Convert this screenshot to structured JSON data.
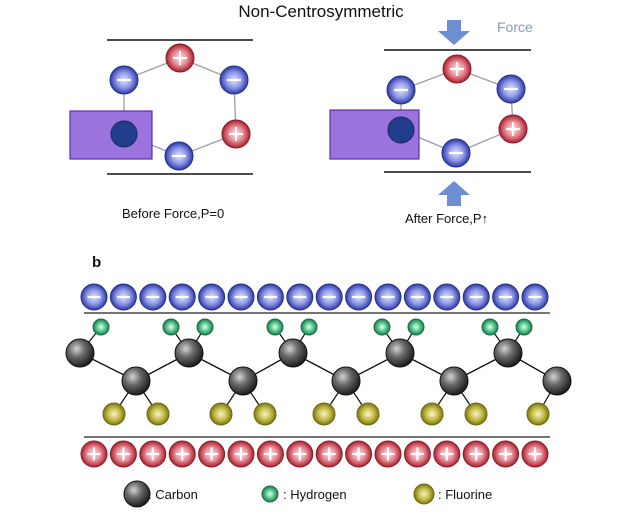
{
  "title": "Non-Centrosymmetric",
  "force_label": "Force",
  "before_caption": "Before Force,P=0",
  "after_caption": "After Force,P↑",
  "panel_label": "b",
  "legend": [
    {
      "symbol": "carbon",
      "label": ": Carbon"
    },
    {
      "symbol": "hydrogen",
      "label": ": Hydrogen"
    },
    {
      "symbol": "fluorine",
      "label": ": Fluorine"
    }
  ],
  "colors": {
    "negative": "#3c46b4",
    "positive": "#c02c3c",
    "carbon": "#3a3a3a",
    "hydrogen": "#2c9a62",
    "fluorine": "#a39a1e",
    "dipole": "#9b72de",
    "arrow": "#6b8fd1"
  },
  "charges": {
    "negative_symbol": "−",
    "positive_symbol": "+"
  }
}
